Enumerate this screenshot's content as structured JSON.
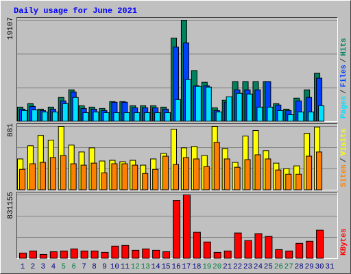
{
  "chart_data": [
    {
      "type": "bar",
      "title": "Daily usage for June 2021",
      "categories": [
        "1",
        "2",
        "3",
        "4",
        "5",
        "6",
        "7",
        "8",
        "9",
        "10",
        "11",
        "12",
        "13",
        "14",
        "15",
        "16",
        "17",
        "18",
        "19",
        "20",
        "21",
        "22",
        "23",
        "24",
        "25",
        "26",
        "27",
        "28",
        "29",
        "30",
        "31"
      ],
      "weekends": [
        5,
        6,
        12,
        13,
        19,
        20,
        26,
        27
      ],
      "weekend_color": "#008040",
      "weekday_color": "#000080",
      "legend_separator": "/",
      "separator_color": "#404040",
      "ylim": [
        0,
        19107
      ],
      "yticks": [
        19107
      ],
      "grid_divisions": 3,
      "series": [
        {
          "name": "Hits",
          "color": "#00805c",
          "values": [
            2730,
            3380,
            2340,
            2730,
            4550,
            5980,
            2990,
            2730,
            2470,
            3770,
            3770,
            2990,
            2990,
            2990,
            2730,
            15730,
            19107,
            9620,
            7410,
            2600,
            4030,
            7540,
            7540,
            7540,
            7540,
            3380,
            2340,
            4420,
            5980,
            9100,
            0
          ]
        },
        {
          "name": "Files",
          "color": "#0040ff",
          "values": [
            2340,
            2860,
            2080,
            2340,
            3900,
            5590,
            2470,
            2340,
            2080,
            3640,
            3640,
            2600,
            2600,
            2600,
            2340,
            14040,
            14820,
            6760,
            6760,
            2080,
            3640,
            5980,
            5980,
            5980,
            7540,
            3120,
            2080,
            3900,
            4550,
            8190,
            0
          ]
        },
        {
          "name": "Pages",
          "color": "#00e0ff",
          "values": [
            2080,
            2210,
            1820,
            1820,
            3380,
            4550,
            1690,
            1820,
            1690,
            1690,
            1690,
            1690,
            1690,
            1690,
            1690,
            4160,
            7930,
            6630,
            6500,
            1820,
            4680,
            5330,
            5200,
            2730,
            2730,
            2080,
            1300,
            1820,
            1820,
            2990,
            0
          ]
        }
      ]
    },
    {
      "type": "bar",
      "ylim": [
        0,
        881
      ],
      "yticks": [
        881
      ],
      "grid_divisions": 3,
      "series": [
        {
          "name": "Visits",
          "color": "#ffff00",
          "values": [
            431,
            613,
            756,
            690,
            881,
            622,
            527,
            584,
            402,
            412,
            393,
            412,
            345,
            431,
            508,
            843,
            584,
            603,
            479,
            881,
            575,
            383,
            747,
            824,
            546,
            373,
            297,
            335,
            785,
            871,
            0
          ]
        },
        {
          "name": "Sites",
          "color": "#ff8000",
          "values": [
            287,
            364,
            383,
            450,
            479,
            364,
            345,
            373,
            239,
            364,
            364,
            345,
            230,
            287,
            469,
            354,
            450,
            431,
            326,
            661,
            431,
            316,
            421,
            488,
            431,
            278,
            220,
            220,
            469,
            527,
            0
          ]
        }
      ]
    },
    {
      "type": "bar",
      "ylim": [
        0,
        831155
      ],
      "yticks": [
        831155
      ],
      "grid_divisions": 3,
      "series": [
        {
          "name": "KBytes",
          "color": "#ff0000",
          "values": [
            72270,
            99380,
            54210,
            90340,
            99380,
            126480,
            99380,
            99380,
            81310,
            162620,
            171650,
            108410,
            126480,
            108410,
            90340,
            758880,
            831155,
            343310,
            216820,
            81310,
            99380,
            334270,
            234890,
            325240,
            289100,
            117440,
            99380,
            198760,
            225860,
            370410,
            0
          ]
        }
      ]
    }
  ]
}
